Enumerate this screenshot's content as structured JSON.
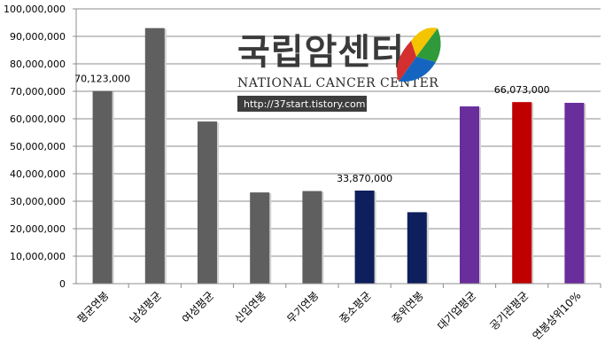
{
  "chart_data": {
    "type": "bar",
    "categories": [
      "평균연봉",
      "남성평균",
      "여성평균",
      "신입연봉",
      "무기연봉",
      "중소평균",
      "중위연봉",
      "대기업평균",
      "공기관평균",
      "연봉상위10%"
    ],
    "values": [
      70123000,
      93000000,
      59000000,
      33200000,
      33700000,
      33870000,
      26000000,
      64500000,
      66073000,
      65800000
    ],
    "colors": [
      "#5f5f5f",
      "#5f5f5f",
      "#5f5f5f",
      "#5f5f5f",
      "#5f5f5f",
      "#0d1f5c",
      "#0d1f5c",
      "#6a2d9c",
      "#c00000",
      "#6a2d9c"
    ],
    "data_labels": [
      {
        "index": 0,
        "text": "70,123,000"
      },
      {
        "index": 5,
        "text": "33,870,000"
      },
      {
        "index": 8,
        "text": "66,073,000"
      }
    ],
    "y_ticks": [
      "0",
      "10,000,000",
      "20,000,000",
      "30,000,000",
      "40,000,000",
      "50,000,000",
      "60,000,000",
      "70,000,000",
      "80,000,000",
      "90,000,000",
      "100,000,000"
    ],
    "ylim": [
      0,
      100000000
    ],
    "title": "",
    "xlabel": "",
    "ylabel": "",
    "grid": true,
    "legend": false
  },
  "watermark": {
    "logo_title": "국립암센터",
    "logo_sub": "NATIONAL CANCER CENTER",
    "url": "http://37start.tistory.com",
    "leaf_colors": [
      "#f5c400",
      "#2e9a3a",
      "#1565c0",
      "#d32f2f"
    ]
  }
}
